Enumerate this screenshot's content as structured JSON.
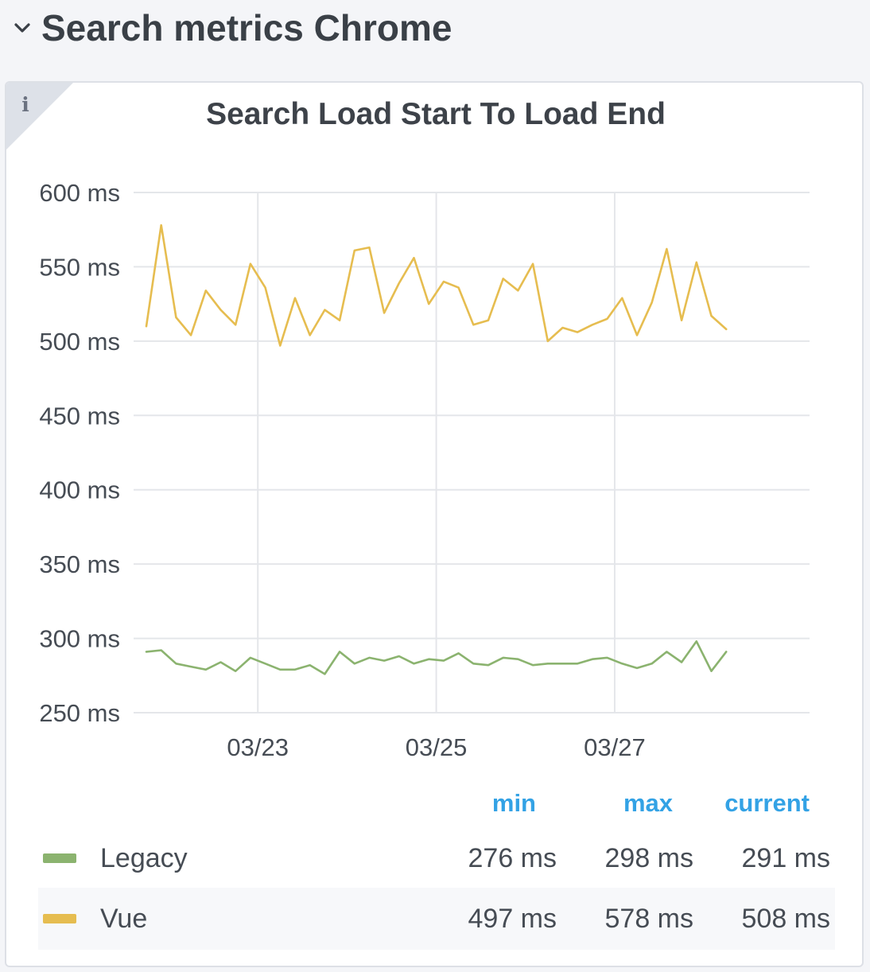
{
  "row": {
    "title": "Search metrics Chrome"
  },
  "panel": {
    "title": "Search Load Start To Load End",
    "info_glyph": "i"
  },
  "legend": {
    "headers": {
      "min": "min",
      "max": "max",
      "current": "current"
    },
    "rows": [
      {
        "name": "Legacy",
        "color": "#8bb36f",
        "min": "276 ms",
        "max": "298 ms",
        "current": "291 ms"
      },
      {
        "name": "Vue",
        "color": "#e6bd50",
        "min": "497 ms",
        "max": "578 ms",
        "current": "508 ms"
      }
    ]
  },
  "chart_data": {
    "type": "line",
    "title": "Search Load Start To Load End",
    "y_unit": "ms",
    "ylim": [
      250,
      600
    ],
    "y_ticks": [
      600,
      550,
      500,
      450,
      400,
      350,
      300,
      250
    ],
    "y_tick_labels": [
      "600 ms",
      "550 ms",
      "500 ms",
      "450 ms",
      "400 ms",
      "350 ms",
      "300 ms",
      "250 ms"
    ],
    "x_start": "03/21 18:00",
    "x_end": "03/29 04:00",
    "x_step_hours": 4,
    "x_ticks": [
      "03/23",
      "03/25",
      "03/27"
    ],
    "x_tick_values": [
      "03/23 00:00",
      "03/25 00:00",
      "03/27 00:00"
    ],
    "grid": true,
    "legend_position": "bottom",
    "series": [
      {
        "name": "Legacy",
        "color": "#8bb36f",
        "values": [
          291,
          292,
          283,
          281,
          279,
          284,
          278,
          287,
          283,
          279,
          279,
          282,
          276,
          291,
          283,
          287,
          285,
          288,
          283,
          286,
          285,
          290,
          283,
          282,
          287,
          286,
          282,
          283,
          283,
          283,
          286,
          287,
          283,
          280,
          283,
          291,
          284,
          298,
          278,
          291
        ]
      },
      {
        "name": "Vue",
        "color": "#e6bd50",
        "values": [
          510,
          578,
          516,
          504,
          534,
          521,
          511,
          552,
          536,
          497,
          529,
          504,
          521,
          514,
          561,
          563,
          519,
          539,
          556,
          525,
          540,
          536,
          511,
          514,
          542,
          534,
          552,
          500,
          509,
          506,
          511,
          515,
          529,
          504,
          526,
          562,
          514,
          553,
          517,
          508
        ]
      }
    ]
  }
}
